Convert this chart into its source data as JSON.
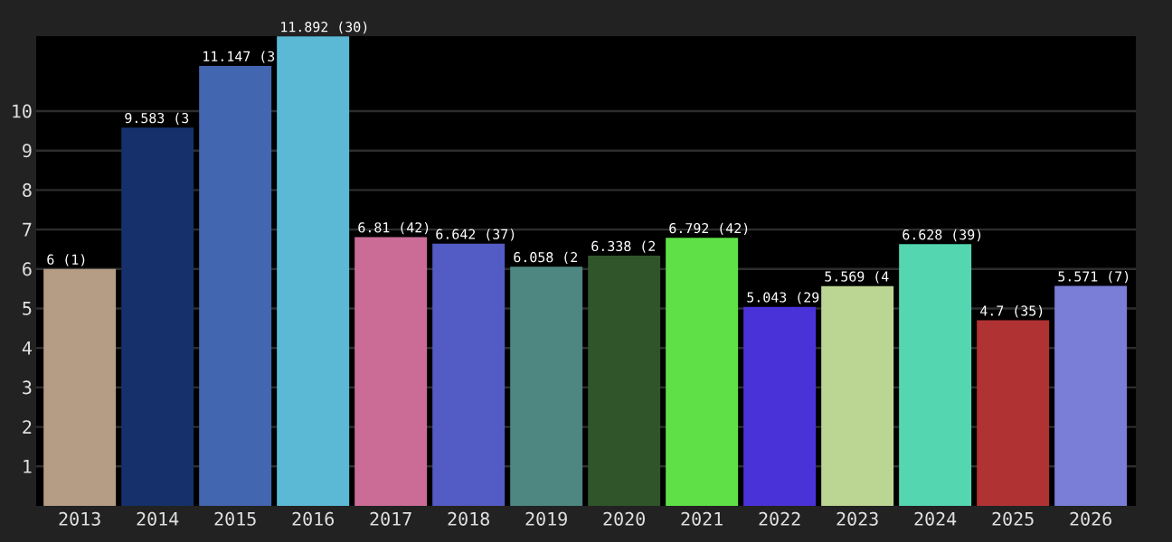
{
  "chart_data": {
    "type": "bar",
    "categories": [
      "2013",
      "2014",
      "2015",
      "2016",
      "2017",
      "2018",
      "2019",
      "2020",
      "2021",
      "2022",
      "2023",
      "2024",
      "2025",
      "2026"
    ],
    "values": [
      6,
      9.583,
      11.147,
      11.892,
      6.81,
      6.642,
      6.058,
      6.338,
      6.792,
      5.043,
      5.569,
      6.628,
      4.7,
      5.571
    ],
    "value_labels": [
      "6 (1)",
      "9.583 (3",
      "11.147 (3",
      "11.892 (30)",
      "6.81 (42)",
      "6.642 (37)",
      "6.058 (2",
      "6.338 (2",
      "6.792 (42)",
      "5.043 (29",
      "5.569 (4",
      "6.628 (39)",
      "4.7 (35)",
      "5.571 (7)"
    ],
    "colors": [
      "#b59c84",
      "#15306b",
      "#4266b0",
      "#5bb9d6",
      "#cb6c97",
      "#535bc4",
      "#4e8682",
      "#30552b",
      "#5ee046",
      "#4a32d9",
      "#bbd593",
      "#54d6b1",
      "#b03232",
      "#7a7ed6"
    ],
    "ylim": [
      0,
      11.9
    ],
    "yticks": [
      1,
      2,
      3,
      4,
      5,
      6,
      7,
      8,
      9,
      10
    ],
    "grid": "y"
  }
}
